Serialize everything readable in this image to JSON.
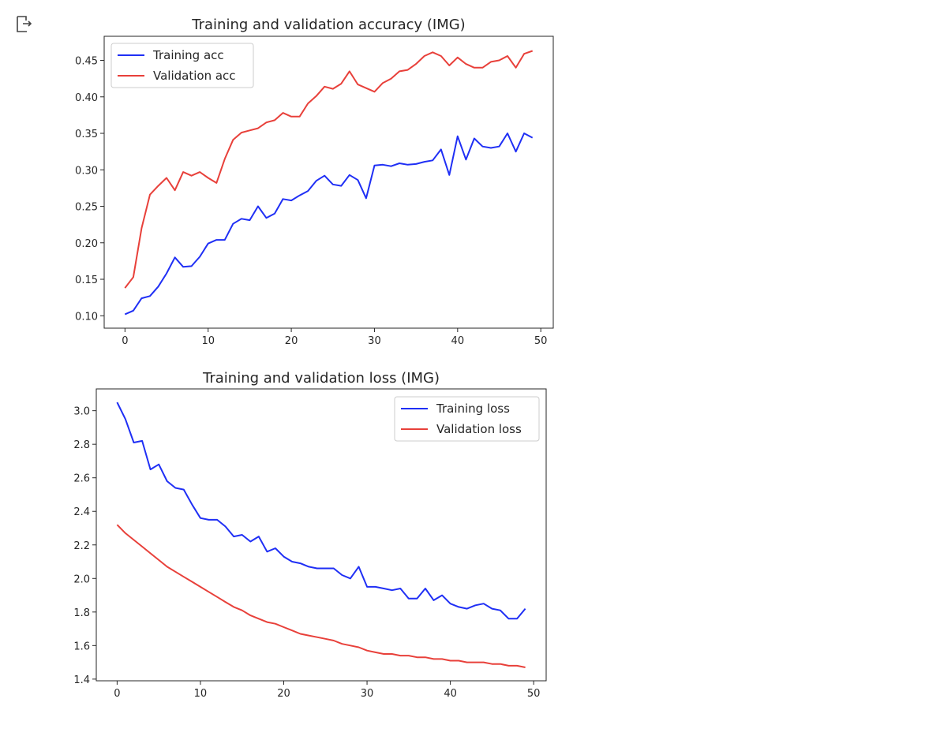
{
  "output_cell": {
    "icon": "output-arrow-icon"
  },
  "colors": {
    "training": "#1f2ff5",
    "validation": "#e8403a",
    "axes": "#262626"
  },
  "chart_data": [
    {
      "type": "line",
      "title": "Training and validation accuracy (IMG)",
      "xlabel": "",
      "ylabel": "",
      "xlim": [
        -2.5,
        51.5
      ],
      "ylim": [
        0.083,
        0.483
      ],
      "xticks": [
        0,
        10,
        20,
        30,
        40,
        50
      ],
      "yticks": [
        0.1,
        0.15,
        0.2,
        0.25,
        0.3,
        0.35,
        0.4,
        0.45
      ],
      "ytick_labels": [
        "0.10",
        "0.15",
        "0.20",
        "0.25",
        "0.30",
        "0.35",
        "0.40",
        "0.45"
      ],
      "legend": "upper-left",
      "grid": false,
      "x": [
        0,
        1,
        2,
        3,
        4,
        5,
        6,
        7,
        8,
        9,
        10,
        11,
        12,
        13,
        14,
        15,
        16,
        17,
        18,
        19,
        20,
        21,
        22,
        23,
        24,
        25,
        26,
        27,
        28,
        29,
        30,
        31,
        32,
        33,
        34,
        35,
        36,
        37,
        38,
        39,
        40,
        41,
        42,
        43,
        44,
        45,
        46,
        47,
        48,
        49
      ],
      "series": [
        {
          "name": "Training acc",
          "color": "#1f2ff5",
          "values": [
            0.102,
            0.107,
            0.124,
            0.127,
            0.14,
            0.158,
            0.18,
            0.167,
            0.168,
            0.181,
            0.199,
            0.204,
            0.204,
            0.226,
            0.233,
            0.231,
            0.25,
            0.234,
            0.24,
            0.26,
            0.258,
            0.265,
            0.271,
            0.285,
            0.292,
            0.28,
            0.278,
            0.293,
            0.286,
            0.261,
            0.306,
            0.307,
            0.305,
            0.309,
            0.307,
            0.308,
            0.311,
            0.313,
            0.328,
            0.293,
            0.346,
            0.314,
            0.343,
            0.332,
            0.33,
            0.332,
            0.35,
            0.325,
            0.35,
            0.344
          ]
        },
        {
          "name": "Validation acc",
          "color": "#e8403a",
          "values": [
            0.138,
            0.153,
            0.22,
            0.266,
            0.278,
            0.289,
            0.272,
            0.297,
            0.292,
            0.297,
            0.289,
            0.282,
            0.315,
            0.341,
            0.351,
            0.354,
            0.357,
            0.365,
            0.368,
            0.378,
            0.373,
            0.373,
            0.391,
            0.401,
            0.414,
            0.411,
            0.418,
            0.435,
            0.417,
            0.412,
            0.407,
            0.419,
            0.425,
            0.435,
            0.437,
            0.445,
            0.456,
            0.461,
            0.456,
            0.443,
            0.454,
            0.445,
            0.44,
            0.44,
            0.448,
            0.45,
            0.456,
            0.44,
            0.459,
            0.463
          ]
        }
      ]
    },
    {
      "type": "line",
      "title": "Training and validation loss (IMG)",
      "xlabel": "",
      "ylabel": "",
      "xlim": [
        -2.5,
        51.5
      ],
      "ylim": [
        1.39,
        3.13
      ],
      "xticks": [
        0,
        10,
        20,
        30,
        40,
        50
      ],
      "yticks": [
        1.4,
        1.6,
        1.8,
        2.0,
        2.2,
        2.4,
        2.6,
        2.8,
        3.0
      ],
      "ytick_labels": [
        "1.4",
        "1.6",
        "1.8",
        "2.0",
        "2.2",
        "2.4",
        "2.6",
        "2.8",
        "3.0"
      ],
      "legend": "upper-right",
      "grid": false,
      "x": [
        0,
        1,
        2,
        3,
        4,
        5,
        6,
        7,
        8,
        9,
        10,
        11,
        12,
        13,
        14,
        15,
        16,
        17,
        18,
        19,
        20,
        21,
        22,
        23,
        24,
        25,
        26,
        27,
        28,
        29,
        30,
        31,
        32,
        33,
        34,
        35,
        36,
        37,
        38,
        39,
        40,
        41,
        42,
        43,
        44,
        45,
        46,
        47,
        48,
        49
      ],
      "series": [
        {
          "name": "Training loss",
          "color": "#1f2ff5",
          "values": [
            3.05,
            2.95,
            2.81,
            2.82,
            2.65,
            2.68,
            2.58,
            2.54,
            2.53,
            2.44,
            2.36,
            2.35,
            2.35,
            2.31,
            2.25,
            2.26,
            2.22,
            2.25,
            2.16,
            2.18,
            2.13,
            2.1,
            2.09,
            2.07,
            2.06,
            2.06,
            2.06,
            2.02,
            2.0,
            2.07,
            1.95,
            1.95,
            1.94,
            1.93,
            1.94,
            1.88,
            1.88,
            1.94,
            1.87,
            1.9,
            1.85,
            1.83,
            1.82,
            1.84,
            1.85,
            1.82,
            1.81,
            1.76,
            1.76,
            1.82
          ]
        },
        {
          "name": "Validation loss",
          "color": "#e8403a",
          "values": [
            2.32,
            2.27,
            2.23,
            2.19,
            2.15,
            2.11,
            2.07,
            2.04,
            2.01,
            1.98,
            1.95,
            1.92,
            1.89,
            1.86,
            1.83,
            1.81,
            1.78,
            1.76,
            1.74,
            1.73,
            1.71,
            1.69,
            1.67,
            1.66,
            1.65,
            1.64,
            1.63,
            1.61,
            1.6,
            1.59,
            1.57,
            1.56,
            1.55,
            1.55,
            1.54,
            1.54,
            1.53,
            1.53,
            1.52,
            1.52,
            1.51,
            1.51,
            1.5,
            1.5,
            1.5,
            1.49,
            1.49,
            1.48,
            1.48,
            1.47
          ]
        }
      ]
    }
  ]
}
